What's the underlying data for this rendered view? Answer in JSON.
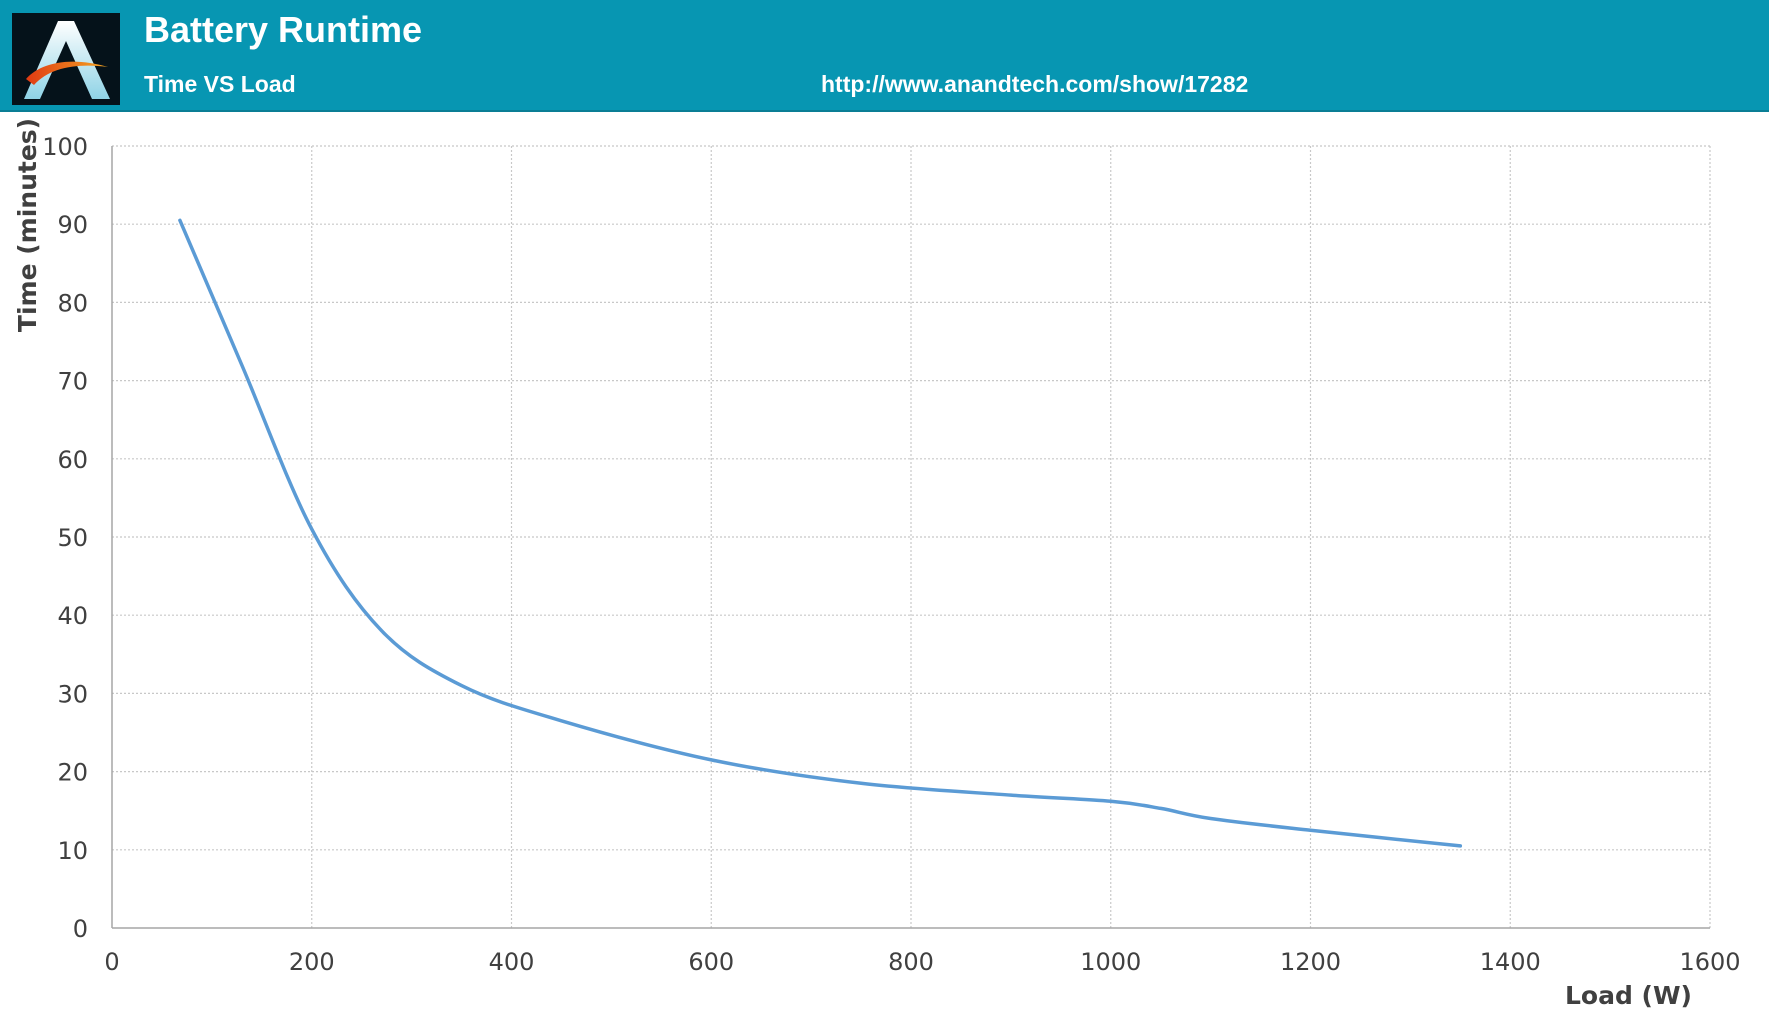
{
  "header": {
    "title": "Battery Runtime",
    "subtitle": "Time VS Load",
    "source_url": "http://www.anandtech.com/show/17282"
  },
  "logo": {
    "letter": "A",
    "brand": "AnandTech"
  },
  "colors": {
    "header_bg": "#0796b2",
    "series_line": "#5b9bd5",
    "grid": "#c8c8c8",
    "axis": "#a6a6a6",
    "text": "#404040"
  },
  "chart_data": {
    "type": "line",
    "title": "Battery Runtime",
    "subtitle": "Time VS Load",
    "xlabel": "Load (W)",
    "ylabel": "Time (minutes)",
    "xlim": [
      0,
      1600
    ],
    "ylim": [
      0,
      100
    ],
    "xticks": [
      0,
      200,
      400,
      600,
      800,
      1000,
      1200,
      1400,
      1600
    ],
    "yticks": [
      0,
      10,
      20,
      30,
      40,
      50,
      60,
      70,
      80,
      90,
      100
    ],
    "grid": true,
    "legend": "none",
    "series": [
      {
        "x": [
          68,
          130,
          200,
          270,
          350,
          450,
          600,
          750,
          900,
          1000,
          1050,
          1100,
          1200,
          1350
        ],
        "y": [
          90.5,
          72,
          51,
          38,
          31,
          26.5,
          21.5,
          18.5,
          17,
          16.2,
          15.3,
          14,
          12.5,
          10.5
        ]
      }
    ]
  }
}
